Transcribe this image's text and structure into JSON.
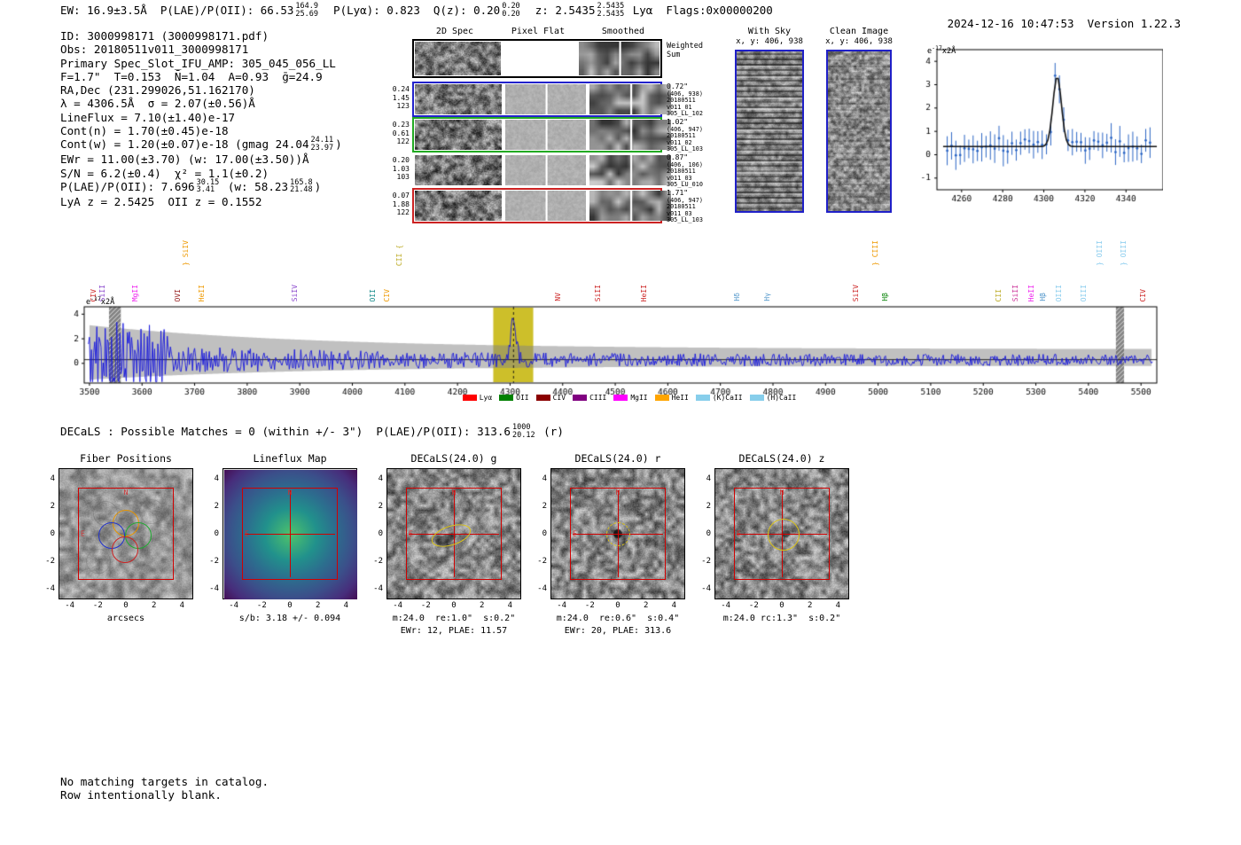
{
  "header": {
    "a": "EW: 16.9±3.5Å  P(LAE)/P(OII): 66.53",
    "hi1": "164.9",
    "lo1": "25.69",
    "b": "  P(Lyα): 0.823  Q(z): 0.20",
    "hi2": "0.20",
    "lo2": "0.20",
    "c": "  z: 2.5435",
    "hi3": "2.5435",
    "lo3": "2.5435",
    "d": " Lyα  Flags:0x00000200",
    "datetime": "2024-12-16 10:47:53",
    "version": "Version 1.22.3"
  },
  "info": {
    "lines1": [
      "ID: 3000998171 (3000998171.pdf)",
      "Obs: 20180511v011_3000998171",
      "Primary Spec_Slot_IFU_AMP: 305_045_056_LL",
      "F=1.7\"  T=0.153  N̄=1.04  A=0.93  ḡ=24.9",
      "RA,Dec (231.299026,51.162170)",
      "λ = 4306.5Å  σ = 2.07(±0.56)Å",
      "LineFlux = 7.10(±1.40)e-17",
      "Cont(n) = 1.70(±0.45)e-18"
    ],
    "cont_w": {
      "a": "Cont(w) = 1.20(±0.07)e-18 (gmag 24.04",
      "hi": "24.11",
      "lo": "23.97",
      "b": ")"
    },
    "lines2": [
      "EWr = 11.00(±3.70) (w: 17.00(±3.50))Å",
      "S/N = 6.2(±0.4)  χ² = 1.1(±0.2)"
    ],
    "plae": {
      "a": "P(LAE)/P(OII): 7.696",
      "f1hi": "30.15",
      "f1lo": "3.41",
      "b": " (w: 58.23",
      "f2hi": "165.8",
      "f2lo": "21.48",
      "c": ")"
    },
    "lines3": [
      "LyA z = 2.5425  OII z = 0.1552"
    ]
  },
  "cutouts": {
    "col_headers": [
      "2D Spec",
      "Pixel Flat",
      "Smoothed"
    ],
    "weighted_sum": "Weighted Sum",
    "rows": [
      {
        "border": "#000000",
        "left": [],
        "right": []
      },
      {
        "border": "#2222cc",
        "left": [
          "0.24",
          "1.45",
          "123"
        ],
        "right": [
          "0.72\"",
          "(406, 938)",
          "20180511",
          "v011_01",
          "305_LL_102"
        ]
      },
      {
        "border": "#22aa22",
        "left": [
          "0.23",
          "0.61",
          "122"
        ],
        "right": [
          "1.02\"",
          "(406, 947)",
          "20180511",
          "v011_02",
          "305_LL_103"
        ]
      },
      {
        "border": "transparent",
        "left": [
          "0.20",
          "1.03",
          "103"
        ],
        "right": [
          "0.87\"",
          "(406, 106)",
          "20180511",
          "v011_03",
          "305_LU_010"
        ]
      },
      {
        "border": "#cc2222",
        "left": [
          "0.07",
          "1.88",
          "122"
        ],
        "right": [
          "1.71\"",
          "(406, 947)",
          "20180511",
          "v011_03",
          "305_LL_103"
        ]
      }
    ]
  },
  "ifu_with_sky": {
    "title": "With Sky",
    "coords": "x, y: 406, 938"
  },
  "ifu_clean": {
    "title": "Clean Image",
    "coords": "x, y: 406, 938"
  },
  "flux_ylabel": {
    "pre": "e",
    "sup": "-17",
    "post": "x2Å"
  },
  "chart_data": [
    {
      "id": "emission_line_fit_zoom",
      "type": "line+errorbar",
      "ylabel": "e-17 x2 Å",
      "xlim": [
        4248,
        4358
      ],
      "ylim": [
        -1.5,
        4.5
      ],
      "xticks": [
        4260,
        4280,
        4300,
        4320,
        4340
      ],
      "yticks": [
        -1,
        0,
        1,
        2,
        3,
        4
      ],
      "gaussian_fit": {
        "center": 4306.5,
        "sigma": 2.07,
        "amplitude": 3.0,
        "continuum": 0.35
      },
      "series_note": "blue errorbar points scatter about continuum 0.35 (typical error ±0.5) rising to ~3.2 at line center 4306.5; black curve is Gaussian fit"
    },
    {
      "id": "full_spectrum",
      "type": "line",
      "ylabel": "e-17 x2 Å",
      "xlim": [
        3490,
        5530
      ],
      "ylim": [
        -1.6,
        4.6
      ],
      "xticks": [
        3500,
        3600,
        3700,
        3800,
        3900,
        4000,
        4100,
        4200,
        4300,
        4400,
        4500,
        4600,
        4700,
        4800,
        4900,
        5000,
        5100,
        5200,
        5300,
        5400,
        5500
      ],
      "yticks": [
        0,
        2,
        4
      ],
      "emission_peak": {
        "center": 4306.5,
        "amplitude": 3.4
      },
      "highlight_region": [
        4268,
        4344
      ],
      "masked_regions": [
        [
          3537,
          3560
        ],
        [
          5452,
          5468
        ]
      ],
      "continuum": 0.3,
      "noise_hint": "noise amplitude ~±1.5 near 3500 declining to ~±0.6 at 5500; gray error band similar"
    }
  ],
  "spectrum_line_labels": [
    {
      "name": "CIV",
      "wave": 3508,
      "color": "#cc2222",
      "tier": 1
    },
    {
      "name": "SiII",
      "wave": 3526,
      "color": "#8844cc",
      "tier": 1
    },
    {
      "name": "MgII",
      "wave": 3588,
      "color": "#ee22ee",
      "tier": 1
    },
    {
      "name": "OVI",
      "wave": 3668,
      "color": "#992222",
      "tier": 1
    },
    {
      "name": "} SiIV",
      "wave": 3684,
      "color": "#ee9900",
      "tier": 2
    },
    {
      "name": "HeII",
      "wave": 3714,
      "color": "#ee9900",
      "tier": 1
    },
    {
      "name": "SiIV",
      "wave": 3892,
      "color": "#8844cc",
      "tier": 1
    },
    {
      "name": "OII",
      "wave": 4040,
      "color": "#118888",
      "tier": 1
    },
    {
      "name": "CIV",
      "wave": 4066,
      "color": "#ee9900",
      "tier": 1
    },
    {
      "name": "CII {",
      "wave": 4090,
      "color": "#bbaa22",
      "tier": 2
    },
    {
      "name": "NV",
      "wave": 4392,
      "color": "#cc2222",
      "tier": 1
    },
    {
      "name": "SiII",
      "wave": 4468,
      "color": "#cc2222",
      "tier": 1
    },
    {
      "name": "HeII",
      "wave": 4556,
      "color": "#cc2222",
      "tier": 1
    },
    {
      "name": "Hδ",
      "wave": 4732,
      "color": "#5599cc",
      "tier": 1
    },
    {
      "name": "Hγ",
      "wave": 4790,
      "color": "#5599cc",
      "tier": 1
    },
    {
      "name": "SiIV",
      "wave": 4958,
      "color": "#cc2222",
      "tier": 1
    },
    {
      "name": "} CIII",
      "wave": 4996,
      "color": "#ee9900",
      "tier": 2
    },
    {
      "name": "Hβ",
      "wave": 5014,
      "color": "#118811",
      "tier": 1
    },
    {
      "name": "CII",
      "wave": 5230,
      "color": "#bbaa22",
      "tier": 1
    },
    {
      "name": "SiII",
      "wave": 5262,
      "color": "#cc3399",
      "tier": 1
    },
    {
      "name": "HeII",
      "wave": 5292,
      "color": "#ee22ee",
      "tier": 1
    },
    {
      "name": "Hβ",
      "wave": 5314,
      "color": "#5599cc",
      "tier": 1
    },
    {
      "name": "OIII",
      "wave": 5344,
      "color": "#88ccee",
      "tier": 1
    },
    {
      "name": "OIII",
      "wave": 5392,
      "color": "#88ccee",
      "tier": 1
    },
    {
      "name": "} OIII",
      "wave": 5422,
      "color": "#88ccee",
      "tier": 2
    },
    {
      "name": "} OIII",
      "wave": 5468,
      "color": "#88ccee",
      "tier": 2
    },
    {
      "name": "CIV",
      "wave": 5504,
      "color": "#cc2222",
      "tier": 1
    }
  ],
  "legend": [
    {
      "label": "Lyα",
      "color": "#ff0000"
    },
    {
      "label": "OII",
      "color": "#008000"
    },
    {
      "label": "CIV",
      "color": "#8b0000"
    },
    {
      "label": "CIII",
      "color": "#800080"
    },
    {
      "label": "MgII",
      "color": "#ff00ff"
    },
    {
      "label": "HeII",
      "color": "#ffa500"
    },
    {
      "label": "(K)CaII",
      "color": "#87ceeb"
    },
    {
      "label": "(H)CaII",
      "color": "#87ceeb"
    }
  ],
  "decals_line": {
    "a": "DECaLS : Possible Matches = 0 (within +/- 3\")  P(LAE)/P(OII): 313.6",
    "hi": "1000",
    "lo": "20.12",
    "b": " (r)"
  },
  "bottom": {
    "compass": {
      "n": "N",
      "e": "E"
    },
    "axis_ticks": [
      "-4",
      "-2",
      "0",
      "2",
      "4"
    ],
    "panels": [
      {
        "title": "Fiber Positions",
        "xlabel": "arcsecs",
        "cap1": "",
        "cap2": ""
      },
      {
        "title": "Lineflux Map",
        "cap1": "s/b: 3.18 +/- 0.094",
        "cap2": ""
      },
      {
        "title": "DECaLS(24.0) g",
        "cap1": "m:24.0  re:1.0\"  s:0.2\"",
        "cap2": "EWr: 12, PLAE: 11.57"
      },
      {
        "title": "DECaLS(24.0) r",
        "cap1": "m:24.0  re:0.6\"  s:0.4\"",
        "cap2": "EWr: 20, PLAE: 313.6"
      },
      {
        "title": "DECaLS(24.0) z",
        "cap1": "m:24.0 rc:1.3\"  s:0.2\"",
        "cap2": ""
      }
    ]
  },
  "footer": [
    "No matching targets in catalog.",
    "Row intentionally blank."
  ]
}
